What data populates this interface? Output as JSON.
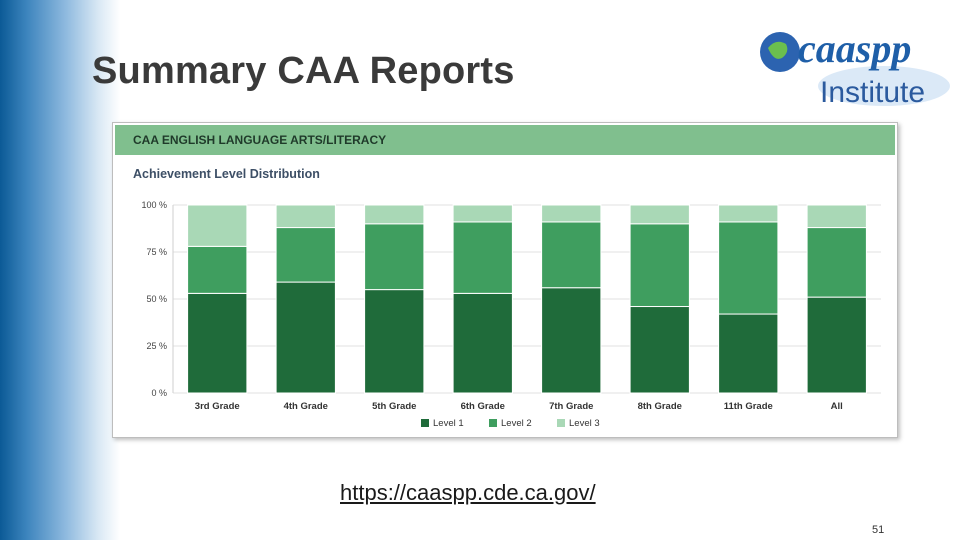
{
  "slide": {
    "title": "Summary CAA Reports",
    "url": "https://caaspp.cde.ca.gov/",
    "page_number": "51"
  },
  "logo": {
    "brand_text": "caaspp",
    "sub_text": "Institute"
  },
  "colors": {
    "level1": "#1f6b3a",
    "level2": "#3f9e5f",
    "level3": "#a9d8b6",
    "header_bg": "#80bf8e",
    "brand_blue": "#1f5fa8"
  },
  "chart_data": {
    "type": "bar",
    "stacked": true,
    "header": "CAA ENGLISH LANGUAGE ARTS/LITERACY",
    "title": "Achievement Level Distribution",
    "categories": [
      "3rd Grade",
      "4th Grade",
      "5th Grade",
      "6th Grade",
      "7th Grade",
      "8th Grade",
      "11th Grade",
      "All"
    ],
    "series": [
      {
        "name": "Level 1",
        "values": [
          53,
          59,
          55,
          53,
          56,
          46,
          42,
          51
        ]
      },
      {
        "name": "Level 2",
        "values": [
          25,
          29,
          35,
          38,
          35,
          44,
          49,
          37
        ]
      },
      {
        "name": "Level 3",
        "values": [
          22,
          12,
          10,
          9,
          9,
          10,
          9,
          12
        ]
      }
    ],
    "yticks": [
      "0 %",
      "25 %",
      "50 %",
      "75 %",
      "100 %"
    ],
    "ylim": [
      0,
      100
    ],
    "grid": true,
    "legend": "bottom-center"
  }
}
